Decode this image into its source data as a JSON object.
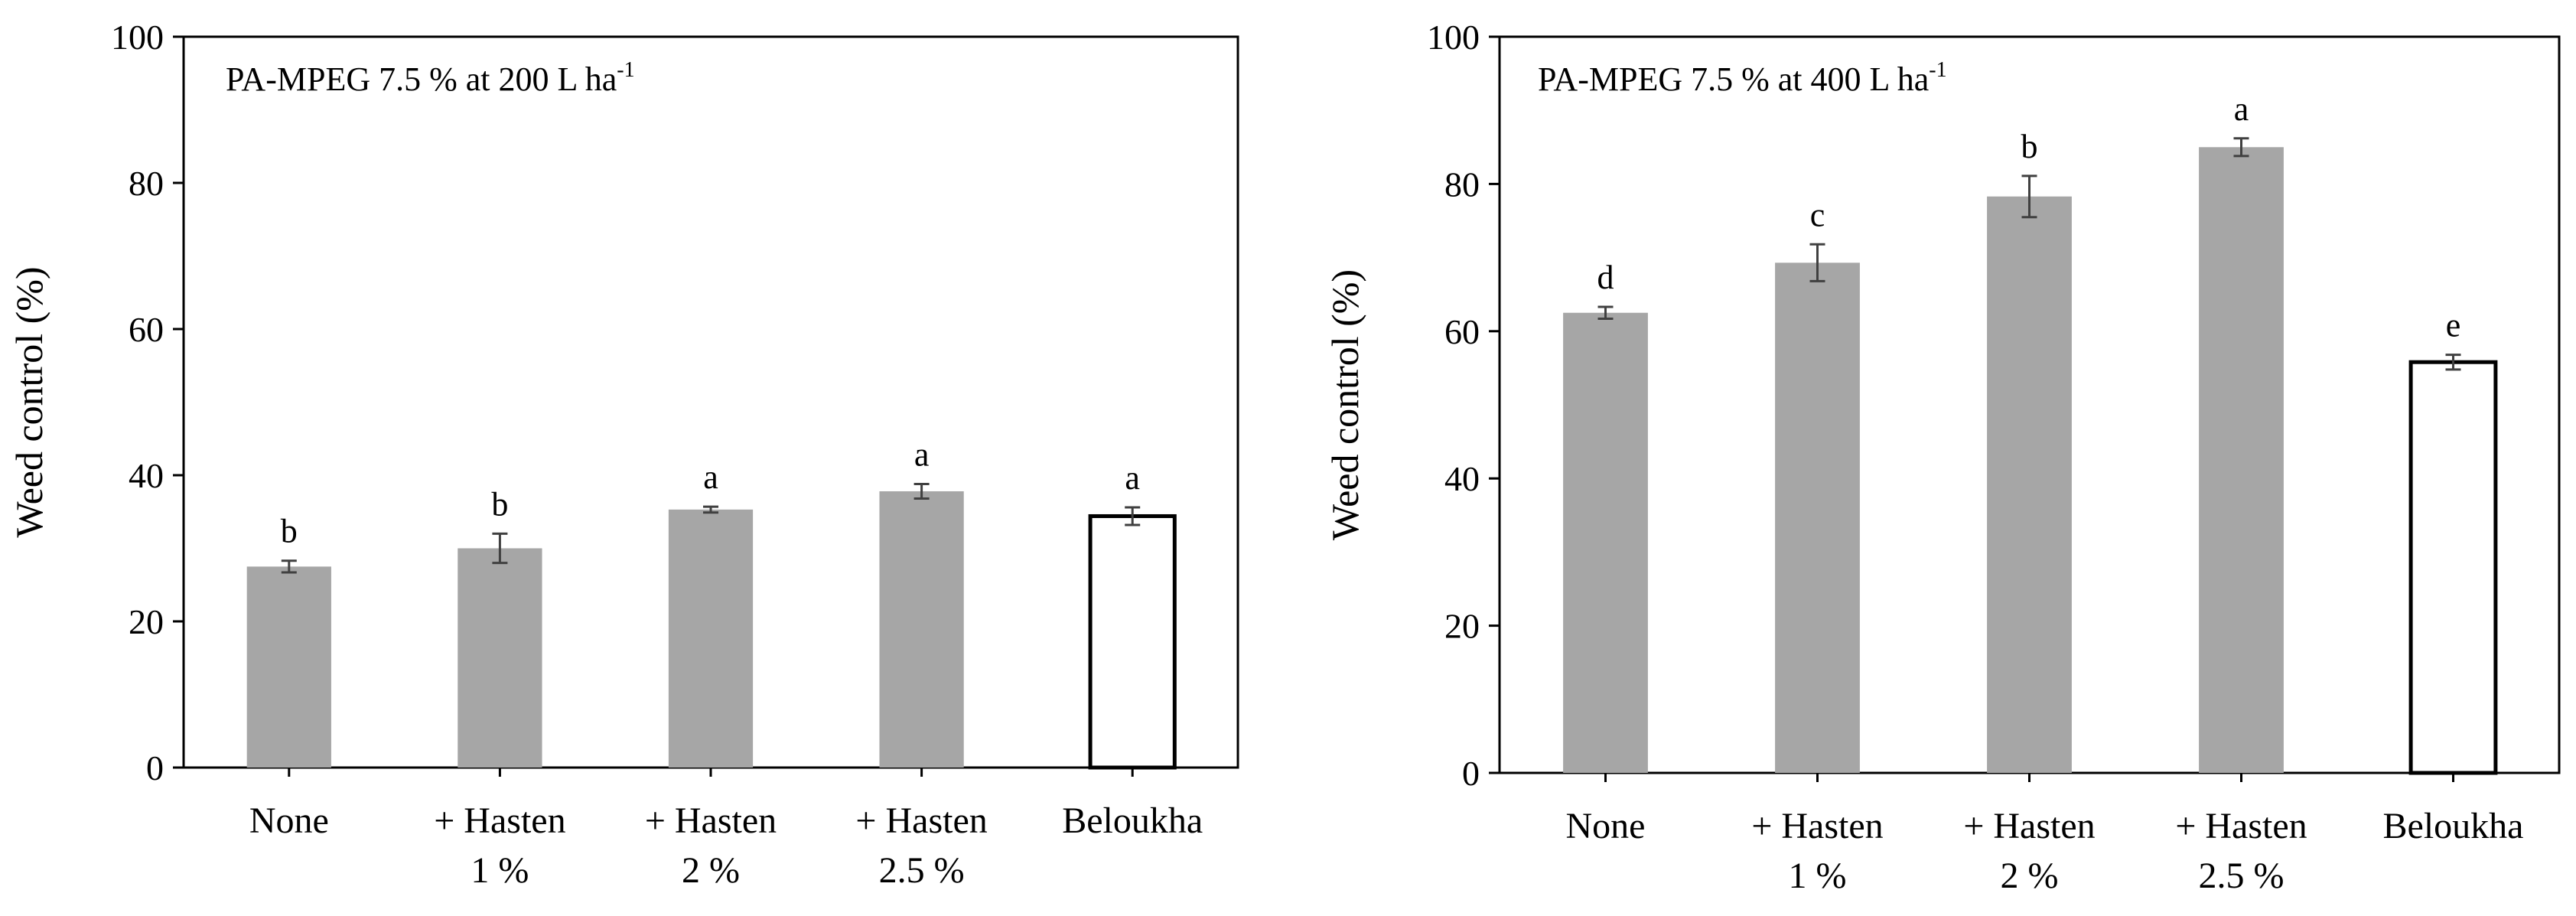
{
  "chart_data": [
    {
      "type": "bar",
      "title": "PA-MPEG 7.5 % at 200 L ha",
      "title_superscript": "-1",
      "ylabel": "Weed control (%)",
      "xlabel": "",
      "ylim": [
        0,
        100
      ],
      "yticks": [
        "0",
        "20",
        "40",
        "60",
        "80",
        "100"
      ],
      "grid": false,
      "categories": [
        {
          "line1": "None",
          "line2": ""
        },
        {
          "line1": "+ Hasten",
          "line2": "1 %"
        },
        {
          "line1": "+ Hasten",
          "line2": "2 %"
        },
        {
          "line1": "+ Hasten",
          "line2": "2.5 %"
        },
        {
          "line1": "Beloukha",
          "line2": ""
        }
      ],
      "values": [
        27.5,
        30,
        35.3,
        37.8,
        34.4
      ],
      "errors": [
        0.8,
        2.0,
        0.4,
        1.0,
        1.2
      ],
      "letters": [
        "b",
        "b",
        "a",
        "a",
        "a"
      ],
      "bar_fill": [
        "#a6a6a6",
        "#a6a6a6",
        "#a6a6a6",
        "#a6a6a6",
        "#ffffff"
      ]
    },
    {
      "type": "bar",
      "title": "PA-MPEG 7.5 % at 400 L ha",
      "title_superscript": "-1",
      "ylabel": "Weed control (%)",
      "xlabel": "",
      "ylim": [
        0,
        100
      ],
      "yticks": [
        "0",
        "20",
        "40",
        "60",
        "80",
        "100"
      ],
      "grid": false,
      "categories": [
        {
          "line1": "None",
          "line2": ""
        },
        {
          "line1": "+ Hasten",
          "line2": "1 %"
        },
        {
          "line1": "+ Hasten",
          "line2": "2 %"
        },
        {
          "line1": "+ Hasten",
          "line2": "2.5 %"
        },
        {
          "line1": "Beloukha",
          "line2": ""
        }
      ],
      "values": [
        62.5,
        69.3,
        78.3,
        85,
        55.8
      ],
      "errors": [
        0.8,
        2.5,
        2.8,
        1.2,
        1.0
      ],
      "letters": [
        "d",
        "c",
        "b",
        "a",
        "e"
      ],
      "bar_fill": [
        "#a6a6a6",
        "#a6a6a6",
        "#a6a6a6",
        "#a6a6a6",
        "#ffffff"
      ]
    }
  ]
}
